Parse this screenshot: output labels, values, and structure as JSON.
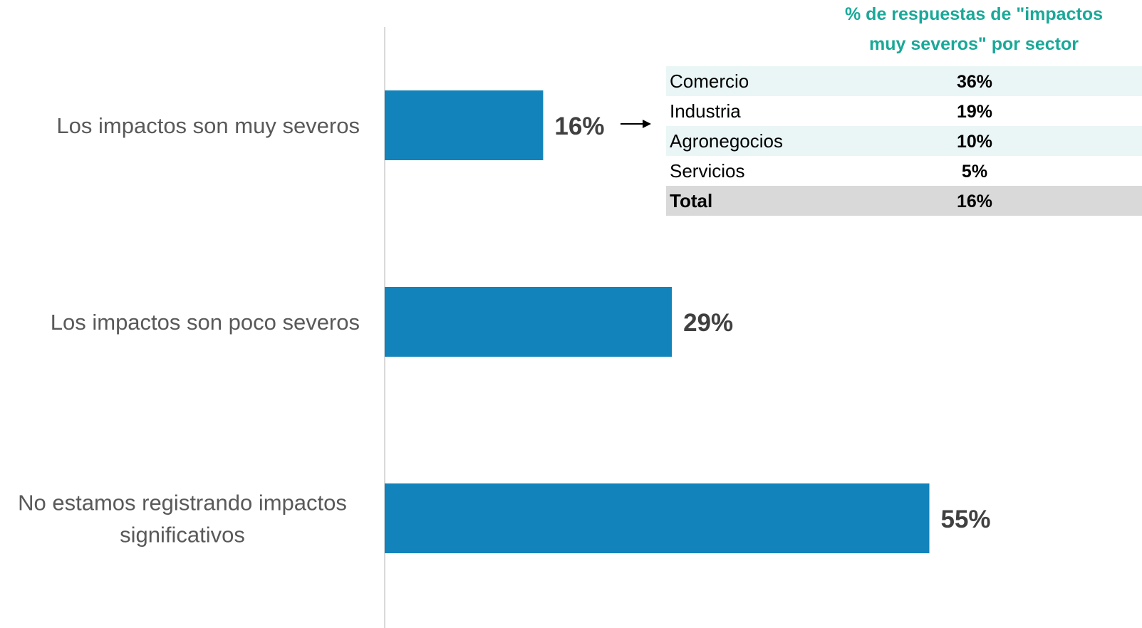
{
  "chart_data": {
    "type": "bar",
    "orientation": "horizontal",
    "categories": [
      "Los impactos son muy severos",
      "Los impactos son poco severos",
      "No estamos registrando impactos significativos"
    ],
    "category_lines": [
      [
        "Los impactos son muy severos"
      ],
      [
        "Los impactos son poco severos"
      ],
      [
        "No estamos registrando impactos",
        "significativos"
      ]
    ],
    "values": [
      16,
      29,
      55
    ],
    "value_labels": [
      "16%",
      "29%",
      "55%"
    ],
    "xlim": [
      0,
      60
    ],
    "grid": false,
    "legend": "none"
  },
  "sector_table": {
    "title_lines": [
      "% de respuestas de \"impactos",
      "muy severos\" por sector"
    ],
    "rows": [
      {
        "sector": "Comercio",
        "value": "36%"
      },
      {
        "sector": "Industria",
        "value": "19%"
      },
      {
        "sector": "Agronegocios",
        "value": "10%"
      },
      {
        "sector": "Servicios",
        "value": "5%"
      }
    ],
    "total": {
      "sector": "Total",
      "value": "16%"
    }
  },
  "colors": {
    "bar": "#1283bb",
    "axis": "#d9d9d9",
    "category_text": "#595959",
    "value_text": "#404040",
    "table_title": "#1aa898",
    "row_stripe": "#eaf6f6",
    "total_row": "#d9d9d9",
    "arrow": "#000000"
  }
}
